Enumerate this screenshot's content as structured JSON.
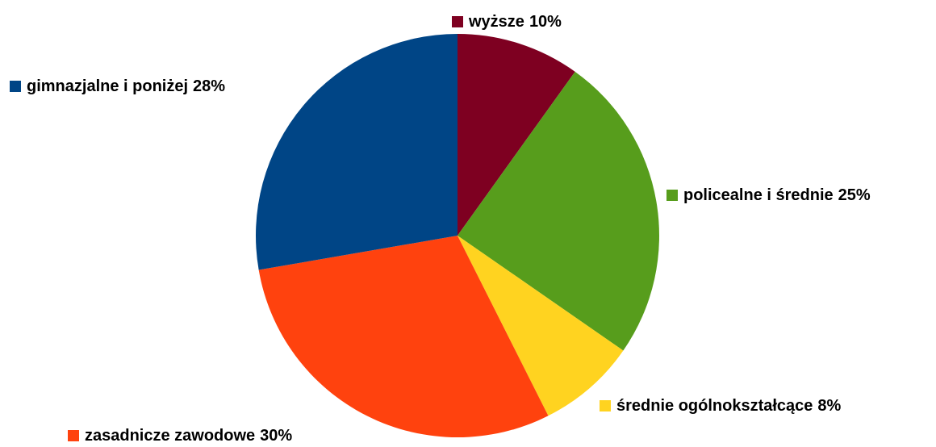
{
  "chart_data": {
    "type": "pie",
    "categories": [
      "wyższe",
      "policealne i średnie",
      "średnie ogólnokształcące",
      "zasadnicze zawodowe",
      "gimnazjalne i poniżej"
    ],
    "values": [
      10,
      25,
      8,
      30,
      28
    ],
    "value_labels": [
      "10%",
      "25%",
      "8%",
      "30%",
      "28%"
    ],
    "colors": [
      "#7e0021",
      "#579d1c",
      "#ffd320",
      "#ff420e",
      "#004586"
    ]
  }
}
